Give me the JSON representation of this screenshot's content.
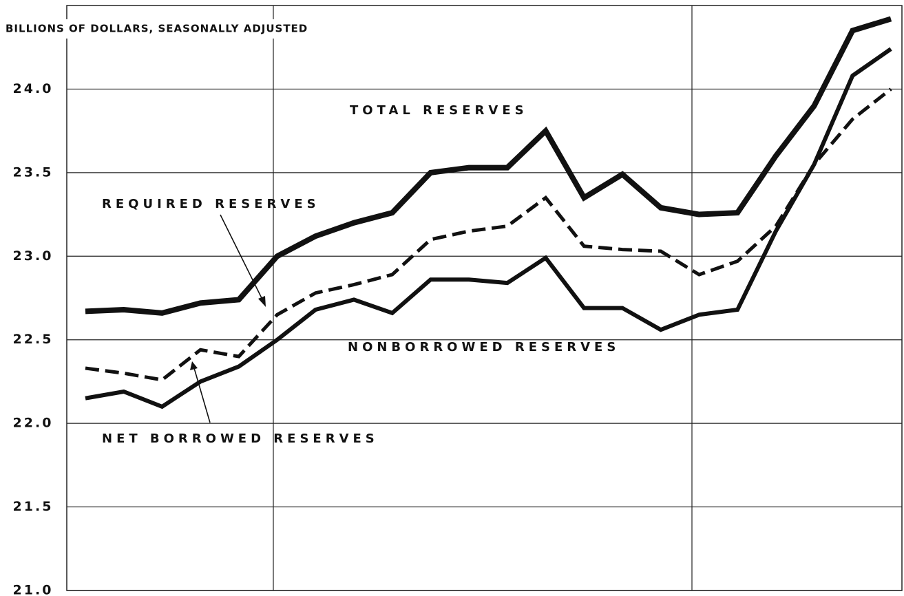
{
  "chart_data": {
    "type": "line",
    "y_label": "BILLIONS OF DOLLARS, SEASONALLY ADJUSTED",
    "categories": [
      null,
      null,
      null,
      null,
      null,
      null,
      null,
      null,
      null,
      null,
      null,
      null,
      null,
      null,
      null,
      null,
      null,
      null,
      null,
      null,
      null,
      null
    ],
    "series": [
      {
        "name": "TOTAL RESERVES",
        "color": "#111111",
        "line_style": "solid",
        "values": [
          22.67,
          22.68,
          22.66,
          22.72,
          22.74,
          23.0,
          23.12,
          23.2,
          23.26,
          23.5,
          23.53,
          23.53,
          23.75,
          23.35,
          23.49,
          23.29,
          23.25,
          23.26,
          23.6,
          23.9,
          24.35,
          24.42
        ]
      },
      {
        "name": "REQUIRED RESERVES",
        "color": "#111111",
        "line_style": "dashed",
        "values": [
          22.33,
          22.3,
          22.26,
          22.44,
          22.4,
          22.65,
          22.78,
          22.83,
          22.89,
          23.1,
          23.15,
          23.18,
          23.35,
          23.06,
          23.04,
          23.03,
          22.89,
          22.97,
          23.18,
          23.55,
          23.82,
          24.0
        ]
      },
      {
        "name": "NONBORROWED RESERVES",
        "color": "#111111",
        "line_style": "solid",
        "values": [
          22.15,
          22.19,
          22.1,
          22.25,
          22.34,
          22.5,
          22.68,
          22.74,
          22.66,
          22.86,
          22.86,
          22.84,
          22.99,
          22.69,
          22.69,
          22.56,
          22.65,
          22.68,
          23.15,
          23.55,
          24.08,
          24.24
        ]
      }
    ],
    "annotations": [
      "NET BORROWED RESERVES"
    ],
    "ylim": [
      21.0,
      24.5
    ],
    "yticks": [
      {
        "value": 21.0,
        "label": "21.0"
      },
      {
        "value": 21.5,
        "label": "21.5"
      },
      {
        "value": 22.0,
        "label": "22.0"
      },
      {
        "value": 22.5,
        "label": "22.5"
      },
      {
        "value": 23.0,
        "label": "23.0"
      },
      {
        "value": 23.5,
        "label": "23.5"
      },
      {
        "value": 24.0,
        "label": "24.0"
      }
    ],
    "grid": true
  }
}
